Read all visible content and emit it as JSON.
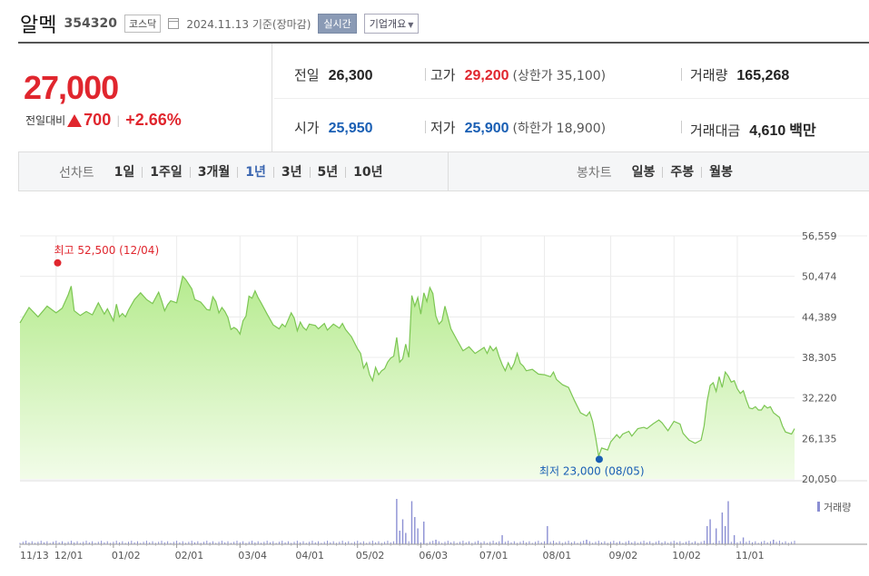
{
  "header": {
    "stock_name": "알멕",
    "stock_code": "354320",
    "market": "코스닥",
    "date_text": "2024.11.13 기준(장마감)",
    "realtime_label": "실시간",
    "company_info_label": "기업개요"
  },
  "summary": {
    "current_price": "27,000",
    "change_label": "전일대비",
    "change_amount": "700",
    "change_percent": "+2.66%",
    "prev_close_label": "전일",
    "prev_close": "26,300",
    "high_label": "고가",
    "high": "29,200",
    "upper_limit_label": "(상한가",
    "upper_limit": "35,100)",
    "volume_label": "거래량",
    "volume": "165,268",
    "open_label": "시가",
    "open": "25,950",
    "low_label": "저가",
    "low": "25,900",
    "lower_limit_label": "(하한가",
    "lower_limit": "18,900)",
    "trade_value_label": "거래대금",
    "trade_value": "4,610",
    "trade_value_unit": "백만"
  },
  "periods": {
    "line_label": "선차트",
    "line_items": [
      "1일",
      "1주일",
      "3개월",
      "1년",
      "3년",
      "5년",
      "10년"
    ],
    "active": "1년",
    "candle_label": "봉차트",
    "candle_items": [
      "일봉",
      "주봉",
      "월봉"
    ]
  },
  "colors": {
    "line": "#7cc653",
    "fill_top": "#b6eb8f",
    "fill_bottom": "#f2fce9",
    "price_up": "#e0262e",
    "low_marker": "#1a5fb4",
    "volume": "#8b8fd3"
  },
  "chart_data": {
    "type": "area",
    "y_ticks": [
      "56,559",
      "50,474",
      "44,389",
      "38,305",
      "32,220",
      "26,135",
      "20,050"
    ],
    "ylim": [
      20050,
      56559
    ],
    "x_tick_labels": [
      "11/13",
      "12/01",
      "01/02",
      "02/01",
      "03/04",
      "04/01",
      "05/02",
      "06/03",
      "07/01",
      "08/01",
      "09/02",
      "10/02",
      "11/01"
    ],
    "max_annotation": "최고 52,500 (12/04)",
    "min_annotation": "최저 23,000 (08/05)",
    "max": {
      "date": "12/04",
      "value": 52500
    },
    "min": {
      "date": "08/05",
      "value": 23000
    },
    "volume_legend": "거래량",
    "series": [
      {
        "values": [
          [
            0,
            43500
          ],
          [
            3,
            45800
          ],
          [
            6,
            44400
          ],
          [
            9,
            46000
          ],
          [
            12,
            45000
          ],
          [
            14,
            45700
          ],
          [
            16,
            47700
          ],
          [
            17,
            49000
          ],
          [
            18,
            45300
          ],
          [
            20,
            44600
          ],
          [
            22,
            45200
          ],
          [
            24,
            44700
          ],
          [
            26,
            46500
          ],
          [
            28,
            44800
          ],
          [
            29,
            45600
          ],
          [
            30,
            44700
          ],
          [
            31,
            43800
          ],
          [
            32,
            46300
          ],
          [
            33,
            44400
          ],
          [
            34,
            44900
          ],
          [
            35,
            44400
          ],
          [
            36,
            45400
          ],
          [
            38,
            47000
          ],
          [
            40,
            48000
          ],
          [
            42,
            47000
          ],
          [
            44,
            46400
          ],
          [
            46,
            48100
          ],
          [
            47,
            46800
          ],
          [
            48,
            45300
          ],
          [
            49,
            46200
          ],
          [
            50,
            46800
          ],
          [
            52,
            46500
          ],
          [
            53,
            48500
          ],
          [
            54,
            50500
          ],
          [
            55,
            50000
          ],
          [
            57,
            48600
          ],
          [
            58,
            47000
          ],
          [
            60,
            46600
          ],
          [
            62,
            45500
          ],
          [
            63,
            45400
          ],
          [
            64,
            47400
          ],
          [
            65,
            46700
          ],
          [
            66,
            45000
          ],
          [
            67,
            45800
          ],
          [
            68,
            45200
          ],
          [
            69,
            44300
          ],
          [
            70,
            42500
          ],
          [
            71,
            42800
          ],
          [
            72,
            42500
          ],
          [
            73,
            41800
          ],
          [
            74,
            43800
          ],
          [
            75,
            44500
          ],
          [
            76,
            47500
          ],
          [
            77,
            47200
          ],
          [
            78,
            48300
          ],
          [
            79,
            47300
          ],
          [
            80,
            46500
          ],
          [
            82,
            44800
          ],
          [
            84,
            43200
          ],
          [
            86,
            42600
          ],
          [
            87,
            43300
          ],
          [
            88,
            42900
          ],
          [
            90,
            45000
          ],
          [
            91,
            44200
          ],
          [
            92,
            42300
          ],
          [
            93,
            43600
          ],
          [
            94,
            42800
          ],
          [
            95,
            42400
          ],
          [
            96,
            43300
          ],
          [
            98,
            43100
          ],
          [
            99,
            42600
          ],
          [
            101,
            43400
          ],
          [
            102,
            42400
          ],
          [
            104,
            43300
          ],
          [
            106,
            42700
          ],
          [
            107,
            43400
          ],
          [
            108,
            42500
          ],
          [
            110,
            41400
          ],
          [
            112,
            39600
          ],
          [
            113,
            38900
          ],
          [
            114,
            36700
          ],
          [
            115,
            37500
          ],
          [
            116,
            35700
          ],
          [
            117,
            34800
          ],
          [
            118,
            36800
          ],
          [
            119,
            35700
          ],
          [
            120,
            36300
          ],
          [
            121,
            36600
          ],
          [
            122,
            37600
          ],
          [
            123,
            38200
          ],
          [
            124,
            38500
          ],
          [
            125,
            41300
          ],
          [
            126,
            37600
          ],
          [
            127,
            38100
          ],
          [
            128,
            40300
          ],
          [
            129,
            38300
          ],
          [
            130,
            47600
          ],
          [
            131,
            46000
          ],
          [
            132,
            47300
          ],
          [
            133,
            44800
          ],
          [
            134,
            48000
          ],
          [
            135,
            46700
          ],
          [
            136,
            48800
          ],
          [
            137,
            47900
          ],
          [
            138,
            44500
          ],
          [
            139,
            43300
          ],
          [
            140,
            43800
          ],
          [
            141,
            46000
          ],
          [
            142,
            44300
          ],
          [
            143,
            42600
          ],
          [
            145,
            40900
          ],
          [
            147,
            39300
          ],
          [
            149,
            39900
          ],
          [
            151,
            38900
          ],
          [
            153,
            39500
          ],
          [
            154,
            39800
          ],
          [
            155,
            38900
          ],
          [
            156,
            40000
          ],
          [
            157,
            39300
          ],
          [
            158,
            39800
          ],
          [
            159,
            38400
          ],
          [
            160,
            37200
          ],
          [
            161,
            36300
          ],
          [
            162,
            37500
          ],
          [
            163,
            36500
          ],
          [
            164,
            37400
          ],
          [
            165,
            38900
          ],
          [
            166,
            37400
          ],
          [
            167,
            37000
          ],
          [
            168,
            36300
          ],
          [
            170,
            36500
          ],
          [
            172,
            35800
          ],
          [
            174,
            35700
          ],
          [
            176,
            35400
          ],
          [
            177,
            36100
          ],
          [
            178,
            35000
          ],
          [
            180,
            34200
          ],
          [
            182,
            33800
          ],
          [
            184,
            31800
          ],
          [
            186,
            30000
          ],
          [
            188,
            29500
          ],
          [
            189,
            30100
          ],
          [
            190,
            28700
          ],
          [
            191,
            26300
          ],
          [
            192,
            23500
          ],
          [
            193,
            24700
          ],
          [
            195,
            24400
          ],
          [
            196,
            25600
          ],
          [
            198,
            26700
          ],
          [
            199,
            26200
          ],
          [
            200,
            26800
          ],
          [
            202,
            27200
          ],
          [
            203,
            26500
          ],
          [
            205,
            27600
          ],
          [
            207,
            27800
          ],
          [
            208,
            27600
          ],
          [
            210,
            28300
          ],
          [
            212,
            28900
          ],
          [
            213,
            28500
          ],
          [
            215,
            27300
          ],
          [
            217,
            28700
          ],
          [
            219,
            28300
          ],
          [
            220,
            26900
          ],
          [
            222,
            25900
          ],
          [
            224,
            25400
          ],
          [
            226,
            25900
          ],
          [
            227,
            28000
          ],
          [
            228,
            31700
          ],
          [
            229,
            34100
          ],
          [
            230,
            34500
          ],
          [
            231,
            33200
          ],
          [
            232,
            35400
          ],
          [
            233,
            33800
          ],
          [
            234,
            36100
          ],
          [
            235,
            35500
          ],
          [
            236,
            34600
          ],
          [
            237,
            34800
          ],
          [
            238,
            33600
          ],
          [
            239,
            32900
          ],
          [
            240,
            33300
          ],
          [
            241,
            31900
          ],
          [
            242,
            30700
          ],
          [
            243,
            30600
          ],
          [
            244,
            30900
          ],
          [
            245,
            30400
          ],
          [
            246,
            30400
          ],
          [
            247,
            31100
          ],
          [
            248,
            30700
          ],
          [
            249,
            30900
          ],
          [
            250,
            30000
          ],
          [
            252,
            29300
          ],
          [
            253,
            28000
          ],
          [
            254,
            27100
          ],
          [
            256,
            26800
          ],
          [
            257,
            27600
          ]
        ]
      }
    ],
    "volume_spikes": [
      [
        125,
        1.0
      ],
      [
        126,
        0.3
      ],
      [
        127,
        0.55
      ],
      [
        128,
        0.25
      ],
      [
        130,
        0.95
      ],
      [
        131,
        0.6
      ],
      [
        132,
        0.35
      ],
      [
        134,
        0.5
      ],
      [
        138,
        0.1
      ],
      [
        160,
        0.2
      ],
      [
        175,
        0.4
      ],
      [
        188,
        0.1
      ],
      [
        228,
        0.4
      ],
      [
        229,
        0.55
      ],
      [
        231,
        0.35
      ],
      [
        233,
        0.7
      ],
      [
        234,
        0.4
      ],
      [
        235,
        0.95
      ],
      [
        237,
        0.2
      ],
      [
        240,
        0.15
      ],
      [
        250,
        0.1
      ]
    ]
  }
}
